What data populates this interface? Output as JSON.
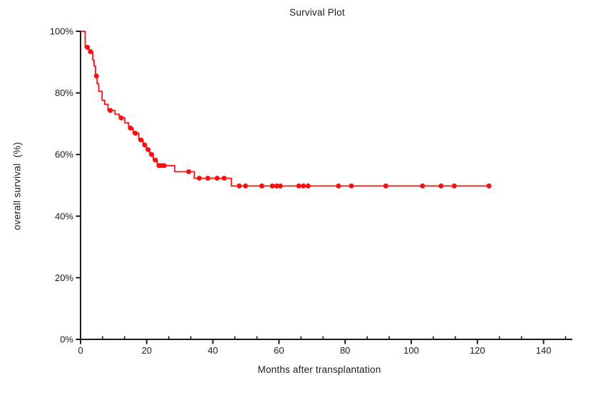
{
  "title": "Survival Plot",
  "colors": {
    "curve": "#f80f0f",
    "axis": "#1a1a1a",
    "text": "#1b1b1b",
    "background": "#ffffff"
  },
  "chart_data": {
    "type": "line",
    "subtype": "kaplan-meier-step-curve",
    "title": "Survival Plot",
    "xlabel": "Months after transplantation",
    "ylabel": "overall survival  (%)",
    "xlim": [
      0,
      150
    ],
    "ylim": [
      0,
      100
    ],
    "x_ticks": [
      0,
      20,
      40,
      60,
      80,
      100,
      120,
      140
    ],
    "x_tick_labels": [
      "0",
      "20",
      "40",
      "60",
      "80",
      "100",
      "120",
      "140"
    ],
    "x_minor_tick_step": 6.6667,
    "x_axis_end": 148.7,
    "y_ticks": [
      0,
      20,
      40,
      60,
      80,
      100
    ],
    "y_tick_labels": [
      "0%",
      "20%",
      "40%",
      "60%",
      "80%",
      "100%"
    ],
    "grid": false,
    "legend": null,
    "series": [
      {
        "name": "overall survival",
        "color": "#f80f0f",
        "steps": [
          [
            0,
            100
          ],
          [
            1.4,
            94.8
          ],
          [
            2.6,
            93.4
          ],
          [
            3.7,
            90.6
          ],
          [
            4.1,
            88.7
          ],
          [
            4.5,
            85.5
          ],
          [
            5.0,
            83.0
          ],
          [
            5.5,
            80.5
          ],
          [
            6.5,
            77.6
          ],
          [
            7.3,
            76.3
          ],
          [
            8.3,
            74.3
          ],
          [
            10.4,
            73.1
          ],
          [
            11.7,
            71.9
          ],
          [
            13.4,
            70.3
          ],
          [
            14.5,
            68.6
          ],
          [
            15.9,
            66.9
          ],
          [
            17.6,
            64.7
          ],
          [
            18.9,
            63.1
          ],
          [
            19.9,
            61.6
          ],
          [
            20.9,
            60.0
          ],
          [
            22.0,
            58.2
          ],
          [
            23.2,
            56.4
          ],
          [
            28.5,
            54.4
          ],
          [
            34.4,
            52.3
          ],
          [
            45.6,
            49.8
          ]
        ],
        "end_time": 124,
        "markers": [
          [
            2.1,
            94.8
          ],
          [
            3.0,
            93.4
          ],
          [
            4.8,
            85.5
          ],
          [
            9.0,
            74.3
          ],
          [
            12.3,
            71.9
          ],
          [
            15.1,
            68.6
          ],
          [
            16.6,
            66.9
          ],
          [
            18.3,
            64.7
          ],
          [
            19.4,
            63.1
          ],
          [
            20.4,
            61.6
          ],
          [
            21.5,
            60.0
          ],
          [
            22.6,
            58.2
          ],
          [
            23.7,
            56.4
          ],
          [
            24.5,
            56.4
          ],
          [
            25.3,
            56.4
          ],
          [
            32.7,
            54.4
          ],
          [
            35.9,
            52.3
          ],
          [
            38.5,
            52.3
          ],
          [
            41.3,
            52.3
          ],
          [
            43.4,
            52.3
          ],
          [
            48.0,
            49.8
          ],
          [
            49.9,
            49.8
          ],
          [
            54.8,
            49.8
          ],
          [
            58.0,
            49.8
          ],
          [
            59.3,
            49.8
          ],
          [
            60.4,
            49.8
          ],
          [
            66.0,
            49.8
          ],
          [
            67.4,
            49.8
          ],
          [
            68.8,
            49.8
          ],
          [
            78.0,
            49.8
          ],
          [
            81.9,
            49.8
          ],
          [
            92.3,
            49.8
          ],
          [
            103.4,
            49.8
          ],
          [
            109.0,
            49.8
          ],
          [
            113.0,
            49.8
          ],
          [
            123.5,
            49.8
          ]
        ]
      }
    ]
  }
}
